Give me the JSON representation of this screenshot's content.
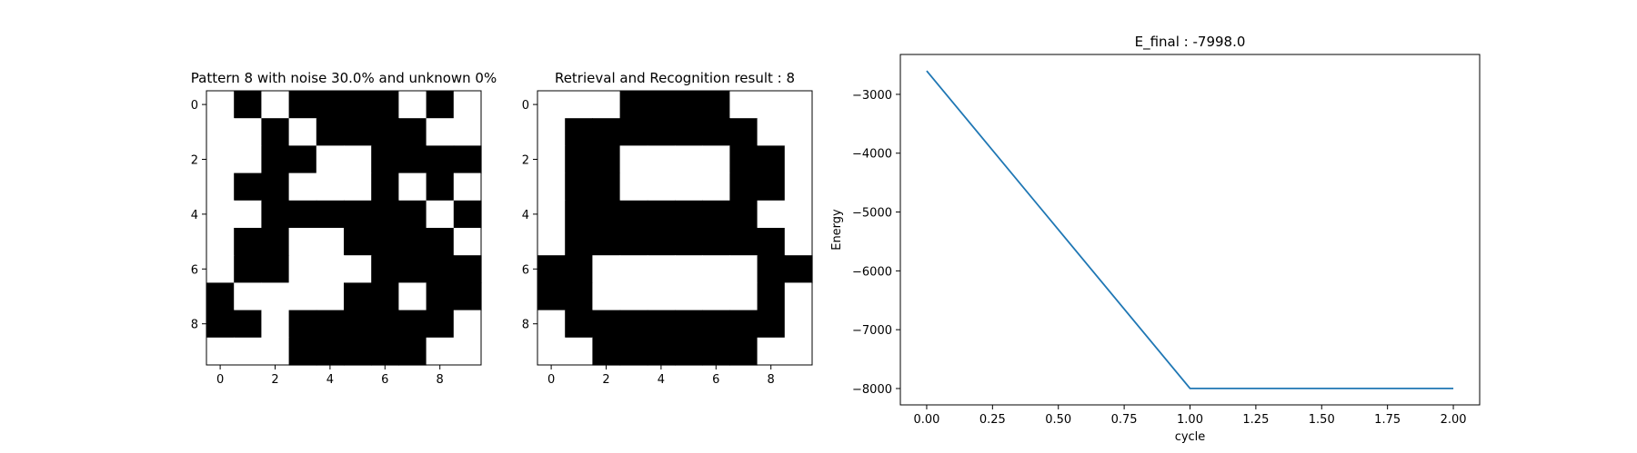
{
  "chart_data": [
    {
      "type": "heatmap",
      "title": "Pattern 8 with noise 30.0% and unknown 0%",
      "xticks": [
        "0",
        "2",
        "4",
        "6",
        "8"
      ],
      "yticks": [
        "0",
        "2",
        "4",
        "6",
        "8"
      ],
      "colors": {
        "1": "#000000",
        "0": "#ffffff"
      },
      "grid": [
        [
          0,
          1,
          0,
          1,
          1,
          1,
          1,
          0,
          1,
          0
        ],
        [
          0,
          0,
          1,
          0,
          1,
          1,
          1,
          1,
          0,
          0
        ],
        [
          0,
          0,
          1,
          1,
          0,
          0,
          1,
          1,
          1,
          1
        ],
        [
          0,
          1,
          1,
          0,
          0,
          0,
          1,
          0,
          1,
          0
        ],
        [
          0,
          0,
          1,
          1,
          1,
          1,
          1,
          1,
          0,
          1
        ],
        [
          0,
          1,
          1,
          0,
          0,
          1,
          1,
          1,
          1,
          0
        ],
        [
          0,
          1,
          1,
          0,
          0,
          0,
          1,
          1,
          1,
          1
        ],
        [
          1,
          0,
          0,
          0,
          0,
          1,
          1,
          0,
          1,
          1
        ],
        [
          1,
          1,
          0,
          1,
          1,
          1,
          1,
          1,
          1,
          0
        ],
        [
          0,
          0,
          0,
          1,
          1,
          1,
          1,
          1,
          0,
          0
        ]
      ]
    },
    {
      "type": "heatmap",
      "title": "Retrieval and Recognition result : 8",
      "xticks": [
        "0",
        "2",
        "4",
        "6",
        "8"
      ],
      "yticks": [
        "0",
        "2",
        "4",
        "6",
        "8"
      ],
      "colors": {
        "1": "#000000",
        "0": "#ffffff"
      },
      "grid": [
        [
          0,
          0,
          0,
          1,
          1,
          1,
          1,
          0,
          0,
          0
        ],
        [
          0,
          1,
          1,
          1,
          1,
          1,
          1,
          1,
          0,
          0
        ],
        [
          0,
          1,
          1,
          0,
          0,
          0,
          0,
          1,
          1,
          0
        ],
        [
          0,
          1,
          1,
          0,
          0,
          0,
          0,
          1,
          1,
          0
        ],
        [
          0,
          1,
          1,
          1,
          1,
          1,
          1,
          1,
          0,
          0
        ],
        [
          0,
          1,
          1,
          1,
          1,
          1,
          1,
          1,
          1,
          0
        ],
        [
          1,
          1,
          0,
          0,
          0,
          0,
          0,
          0,
          1,
          1
        ],
        [
          1,
          1,
          0,
          0,
          0,
          0,
          0,
          0,
          1,
          0
        ],
        [
          0,
          1,
          1,
          1,
          1,
          1,
          1,
          1,
          1,
          0
        ],
        [
          0,
          0,
          1,
          1,
          1,
          1,
          1,
          1,
          0,
          0
        ]
      ]
    },
    {
      "type": "line",
      "title": "E_final : -7998.0",
      "xlabel": "cycle",
      "ylabel": "Energy",
      "xlim": [
        -0.1,
        2.1
      ],
      "ylim": [
        -8278,
        -2322
      ],
      "xticks": [
        0.0,
        0.25,
        0.5,
        0.75,
        1.0,
        1.25,
        1.5,
        1.75,
        2.0
      ],
      "xtick_labels": [
        "0.00",
        "0.25",
        "0.50",
        "0.75",
        "1.00",
        "1.25",
        "1.50",
        "1.75",
        "2.00"
      ],
      "yticks": [
        -3000,
        -4000,
        -5000,
        -6000,
        -7000,
        -8000
      ],
      "ytick_labels": [
        "−3000",
        "−4000",
        "−5000",
        "−6000",
        "−7000",
        "−8000"
      ],
      "x": [
        0,
        1,
        2
      ],
      "y": [
        -2600,
        -7998,
        -7998
      ],
      "line_color": "#1f77b4"
    }
  ]
}
